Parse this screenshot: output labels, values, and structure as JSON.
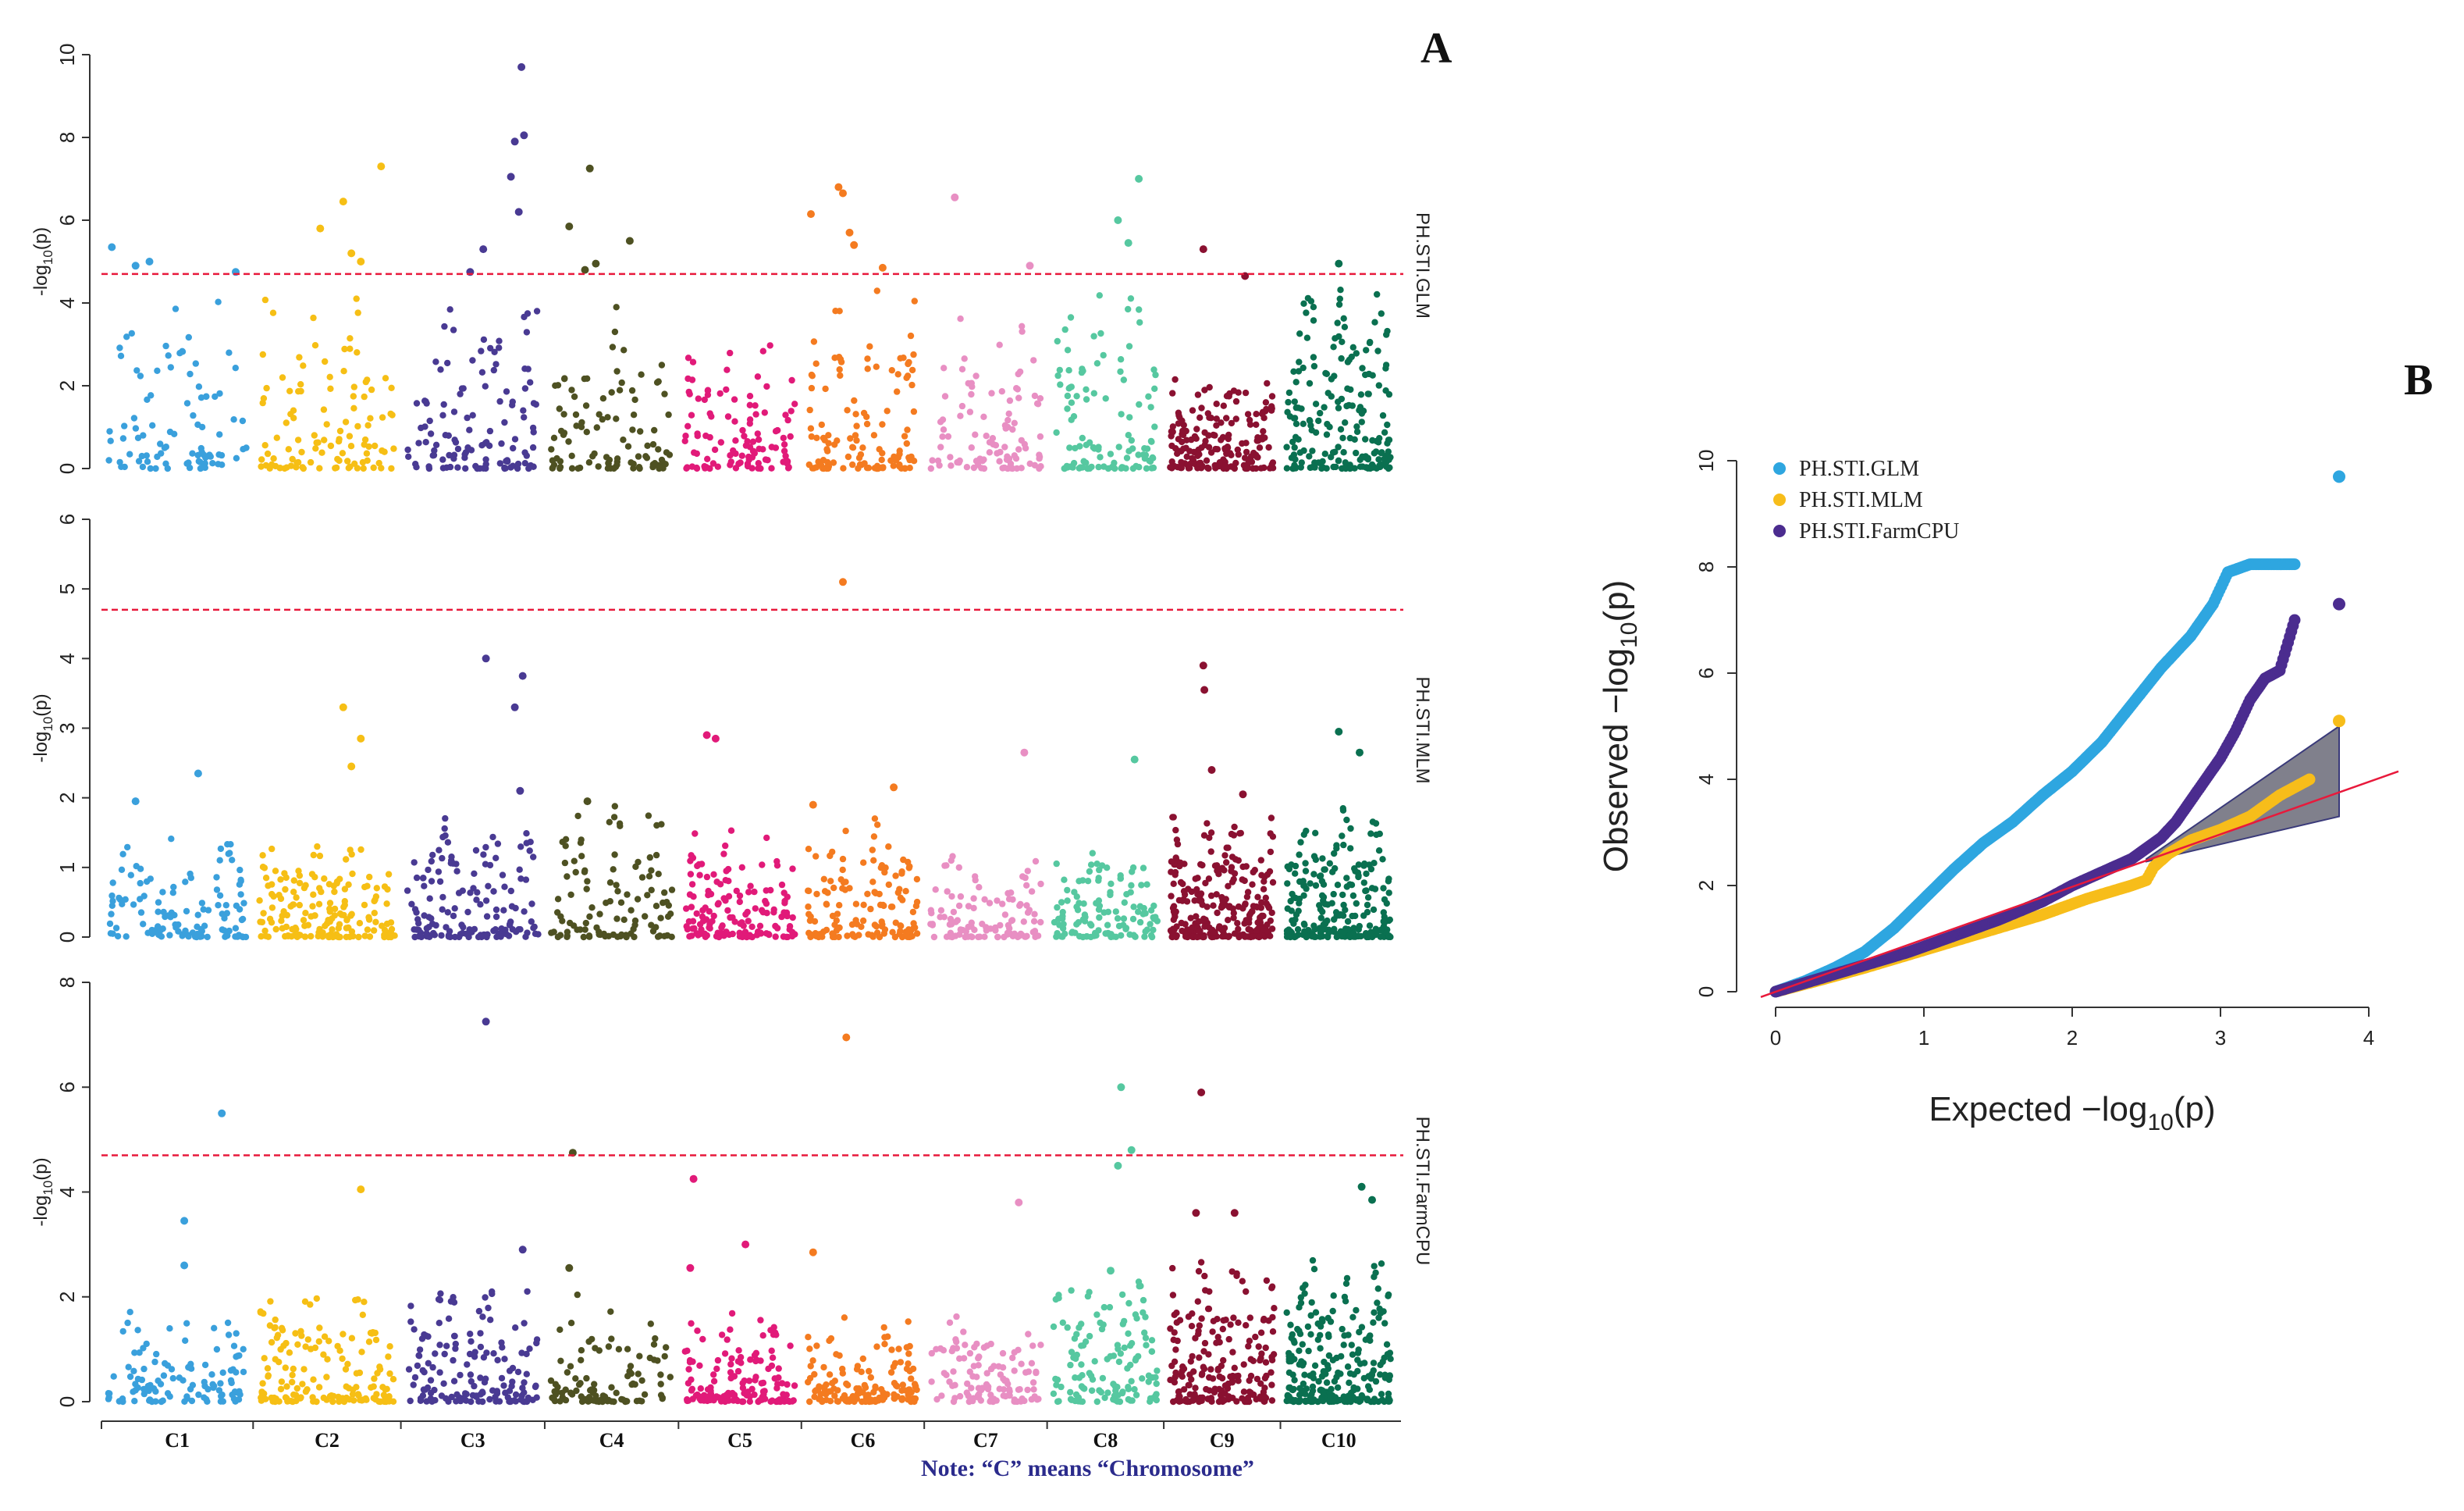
{
  "panel_labels": {
    "a": "A",
    "b": "B"
  },
  "note": "Note: “C” means “Chromosome”",
  "chromosomes": [
    "C1",
    "C2",
    "C3",
    "C4",
    "C5",
    "C6",
    "C7",
    "C8",
    "C9",
    "C10"
  ],
  "colors": {
    "chromosomes": [
      "#3aa0dc",
      "#f6bf15",
      "#493a93",
      "#4e5122",
      "#e11a79",
      "#f47b20",
      "#e88fc3",
      "#56c8a0",
      "#8a1131",
      "#0a7050"
    ],
    "threshold": "#e8193b",
    "glm": "#2ea6e0",
    "mlm": "#f7bd1a",
    "farmcpu": "#4b2c8f",
    "expected_line": "#e8193b",
    "ci_fill": "#555566"
  },
  "chart_data": [
    {
      "type": "scatter",
      "subtype": "manhattan",
      "label": "PH.STI.GLM",
      "ylabel": "-log10(p)",
      "ylim": [
        0,
        10
      ],
      "yticks": [
        "0",
        "2",
        "4",
        "6",
        "8",
        "10"
      ],
      "threshold": 4.7,
      "top_hits": [
        {
          "chrom": 1,
          "pos": 0.03,
          "y": 5.35
        },
        {
          "chrom": 1,
          "pos": 0.2,
          "y": 4.9
        },
        {
          "chrom": 1,
          "pos": 0.3,
          "y": 5.0
        },
        {
          "chrom": 1,
          "pos": 0.92,
          "y": 4.75
        },
        {
          "chrom": 2,
          "pos": 0.45,
          "y": 5.8
        },
        {
          "chrom": 2,
          "pos": 0.62,
          "y": 6.45
        },
        {
          "chrom": 2,
          "pos": 0.68,
          "y": 5.2
        },
        {
          "chrom": 2,
          "pos": 0.75,
          "y": 5.0
        },
        {
          "chrom": 2,
          "pos": 0.9,
          "y": 7.3
        },
        {
          "chrom": 3,
          "pos": 0.48,
          "y": 4.75
        },
        {
          "chrom": 3,
          "pos": 0.58,
          "y": 5.3
        },
        {
          "chrom": 3,
          "pos": 0.79,
          "y": 7.05
        },
        {
          "chrom": 3,
          "pos": 0.82,
          "y": 7.9
        },
        {
          "chrom": 3,
          "pos": 0.85,
          "y": 6.2
        },
        {
          "chrom": 3,
          "pos": 0.87,
          "y": 9.7
        },
        {
          "chrom": 3,
          "pos": 0.89,
          "y": 8.05
        },
        {
          "chrom": 4,
          "pos": 0.15,
          "y": 5.85
        },
        {
          "chrom": 4,
          "pos": 0.28,
          "y": 4.8
        },
        {
          "chrom": 4,
          "pos": 0.32,
          "y": 7.25
        },
        {
          "chrom": 4,
          "pos": 0.37,
          "y": 4.95
        },
        {
          "chrom": 4,
          "pos": 0.65,
          "y": 5.5
        },
        {
          "chrom": 6,
          "pos": 0.03,
          "y": 6.15
        },
        {
          "chrom": 6,
          "pos": 0.28,
          "y": 6.8
        },
        {
          "chrom": 6,
          "pos": 0.32,
          "y": 6.65
        },
        {
          "chrom": 6,
          "pos": 0.38,
          "y": 5.7
        },
        {
          "chrom": 6,
          "pos": 0.42,
          "y": 5.4
        },
        {
          "chrom": 6,
          "pos": 0.68,
          "y": 4.85
        },
        {
          "chrom": 7,
          "pos": 0.22,
          "y": 6.55
        },
        {
          "chrom": 7,
          "pos": 0.9,
          "y": 4.9
        },
        {
          "chrom": 8,
          "pos": 0.62,
          "y": 6.0
        },
        {
          "chrom": 8,
          "pos": 0.82,
          "y": 7.0
        },
        {
          "chrom": 8,
          "pos": 0.72,
          "y": 5.45
        },
        {
          "chrom": 9,
          "pos": 0.32,
          "y": 5.3
        },
        {
          "chrom": 9,
          "pos": 0.72,
          "y": 4.65
        },
        {
          "chrom": 10,
          "pos": 0.5,
          "y": 4.95
        }
      ]
    },
    {
      "type": "scatter",
      "subtype": "manhattan",
      "label": "PH.STI.MLM",
      "ylabel": "-log10(p)",
      "ylim": [
        0,
        6
      ],
      "yticks": [
        "0",
        "1",
        "2",
        "3",
        "4",
        "5",
        "6"
      ],
      "threshold": 4.7,
      "top_hits": [
        {
          "chrom": 1,
          "pos": 0.65,
          "y": 2.35
        },
        {
          "chrom": 1,
          "pos": 0.2,
          "y": 1.95
        },
        {
          "chrom": 2,
          "pos": 0.62,
          "y": 3.3
        },
        {
          "chrom": 2,
          "pos": 0.75,
          "y": 2.85
        },
        {
          "chrom": 2,
          "pos": 0.68,
          "y": 2.45
        },
        {
          "chrom": 3,
          "pos": 0.6,
          "y": 4.0
        },
        {
          "chrom": 3,
          "pos": 0.82,
          "y": 3.3
        },
        {
          "chrom": 3,
          "pos": 0.88,
          "y": 3.75
        },
        {
          "chrom": 3,
          "pos": 0.86,
          "y": 2.1
        },
        {
          "chrom": 4,
          "pos": 0.3,
          "y": 1.95
        },
        {
          "chrom": 5,
          "pos": 0.2,
          "y": 2.9
        },
        {
          "chrom": 5,
          "pos": 0.28,
          "y": 2.85
        },
        {
          "chrom": 6,
          "pos": 0.05,
          "y": 1.9
        },
        {
          "chrom": 6,
          "pos": 0.32,
          "y": 5.1
        },
        {
          "chrom": 6,
          "pos": 0.78,
          "y": 2.15
        },
        {
          "chrom": 7,
          "pos": 0.85,
          "y": 2.65
        },
        {
          "chrom": 8,
          "pos": 0.78,
          "y": 2.55
        },
        {
          "chrom": 9,
          "pos": 0.32,
          "y": 3.9
        },
        {
          "chrom": 9,
          "pos": 0.33,
          "y": 3.55
        },
        {
          "chrom": 9,
          "pos": 0.4,
          "y": 2.4
        },
        {
          "chrom": 9,
          "pos": 0.7,
          "y": 2.05
        },
        {
          "chrom": 10,
          "pos": 0.5,
          "y": 2.95
        },
        {
          "chrom": 10,
          "pos": 0.7,
          "y": 2.65
        }
      ]
    },
    {
      "type": "scatter",
      "subtype": "manhattan",
      "label": "PH.STI.FarmCPU",
      "ylabel": "-log10(p)",
      "ylim": [
        0,
        8
      ],
      "yticks": [
        "0",
        "2",
        "4",
        "6",
        "8"
      ],
      "threshold": 4.7,
      "top_hits": [
        {
          "chrom": 1,
          "pos": 0.55,
          "y": 3.45
        },
        {
          "chrom": 1,
          "pos": 0.55,
          "y": 2.6
        },
        {
          "chrom": 1,
          "pos": 0.82,
          "y": 5.5
        },
        {
          "chrom": 2,
          "pos": 0.75,
          "y": 4.05
        },
        {
          "chrom": 3,
          "pos": 0.6,
          "y": 7.25
        },
        {
          "chrom": 3,
          "pos": 0.88,
          "y": 2.9
        },
        {
          "chrom": 4,
          "pos": 0.18,
          "y": 4.75
        },
        {
          "chrom": 4,
          "pos": 0.15,
          "y": 2.55
        },
        {
          "chrom": 5,
          "pos": 0.05,
          "y": 2.55
        },
        {
          "chrom": 5,
          "pos": 0.08,
          "y": 4.25
        },
        {
          "chrom": 5,
          "pos": 0.55,
          "y": 3.0
        },
        {
          "chrom": 6,
          "pos": 0.05,
          "y": 2.85
        },
        {
          "chrom": 6,
          "pos": 0.35,
          "y": 6.95
        },
        {
          "chrom": 7,
          "pos": 0.8,
          "y": 3.8
        },
        {
          "chrom": 8,
          "pos": 0.55,
          "y": 2.5
        },
        {
          "chrom": 8,
          "pos": 0.62,
          "y": 4.5
        },
        {
          "chrom": 8,
          "pos": 0.65,
          "y": 6.0
        },
        {
          "chrom": 8,
          "pos": 0.75,
          "y": 4.8
        },
        {
          "chrom": 9,
          "pos": 0.3,
          "y": 5.9
        },
        {
          "chrom": 9,
          "pos": 0.25,
          "y": 3.6
        },
        {
          "chrom": 9,
          "pos": 0.62,
          "y": 3.6
        },
        {
          "chrom": 10,
          "pos": 0.72,
          "y": 4.1
        },
        {
          "chrom": 10,
          "pos": 0.82,
          "y": 3.85
        }
      ]
    },
    {
      "type": "scatter",
      "subtype": "qq",
      "xlabel": "Expected  −log10(p)",
      "xlabel_main": "Expected  −log",
      "xlabel_sub": "10",
      "xlabel_tail": "(p)",
      "ylabel": "Observed  −log10(p)",
      "ylabel_main": "Observed  −log",
      "ylabel_sub": "10",
      "ylabel_tail": "(p)",
      "xlim": [
        0,
        4
      ],
      "ylim": [
        0,
        10
      ],
      "xticks": [
        "0",
        "1",
        "2",
        "3",
        "4"
      ],
      "yticks": [
        "0",
        "2",
        "4",
        "6",
        "8",
        "10"
      ],
      "legend": [
        "PH.STI.GLM",
        "PH.STI.MLM",
        "PH.STI.FarmCPU"
      ],
      "legend_position": "top-left",
      "series": [
        {
          "name": "PH.STI.GLM",
          "points": [
            [
              0,
              0
            ],
            [
              0.2,
              0.2
            ],
            [
              0.4,
              0.45
            ],
            [
              0.6,
              0.75
            ],
            [
              0.8,
              1.2
            ],
            [
              1.0,
              1.75
            ],
            [
              1.2,
              2.3
            ],
            [
              1.4,
              2.8
            ],
            [
              1.6,
              3.2
            ],
            [
              1.8,
              3.7
            ],
            [
              2.0,
              4.15
            ],
            [
              2.2,
              4.7
            ],
            [
              2.4,
              5.4
            ],
            [
              2.6,
              6.1
            ],
            [
              2.8,
              6.7
            ],
            [
              2.95,
              7.3
            ],
            [
              3.05,
              7.9
            ],
            [
              3.2,
              8.05
            ],
            [
              3.3,
              8.05
            ],
            [
              3.5,
              8.05
            ],
            [
              3.8,
              9.7
            ]
          ]
        },
        {
          "name": "PH.STI.MLM",
          "points": [
            [
              0,
              0
            ],
            [
              0.3,
              0.22
            ],
            [
              0.6,
              0.45
            ],
            [
              0.9,
              0.7
            ],
            [
              1.2,
              0.95
            ],
            [
              1.5,
              1.2
            ],
            [
              1.8,
              1.45
            ],
            [
              2.1,
              1.75
            ],
            [
              2.4,
              2.0
            ],
            [
              2.5,
              2.1
            ],
            [
              2.55,
              2.35
            ],
            [
              2.65,
              2.6
            ],
            [
              2.8,
              2.85
            ],
            [
              3.0,
              3.05
            ],
            [
              3.2,
              3.3
            ],
            [
              3.3,
              3.5
            ],
            [
              3.4,
              3.7
            ],
            [
              3.5,
              3.85
            ],
            [
              3.6,
              4.0
            ],
            [
              3.8,
              5.1
            ]
          ]
        },
        {
          "name": "PH.STI.FarmCPU",
          "points": [
            [
              0,
              0
            ],
            [
              0.3,
              0.25
            ],
            [
              0.6,
              0.5
            ],
            [
              0.9,
              0.75
            ],
            [
              1.2,
              1.05
            ],
            [
              1.5,
              1.35
            ],
            [
              1.8,
              1.7
            ],
            [
              2.0,
              2.0
            ],
            [
              2.2,
              2.25
            ],
            [
              2.4,
              2.5
            ],
            [
              2.6,
              2.9
            ],
            [
              2.7,
              3.2
            ],
            [
              2.8,
              3.6
            ],
            [
              2.9,
              4.0
            ],
            [
              3.0,
              4.4
            ],
            [
              3.1,
              4.9
            ],
            [
              3.2,
              5.5
            ],
            [
              3.3,
              5.9
            ],
            [
              3.4,
              6.05
            ],
            [
              3.5,
              7.0
            ],
            [
              3.8,
              7.3
            ]
          ]
        }
      ],
      "expected_line": [
        [
          -0.1,
          -0.1
        ],
        [
          4.2,
          4.15
        ]
      ],
      "ci_band": {
        "x": [
          2.5,
          3.8
        ],
        "upper_at_end": 5.0,
        "lower_at_end": 3.3
      }
    }
  ]
}
